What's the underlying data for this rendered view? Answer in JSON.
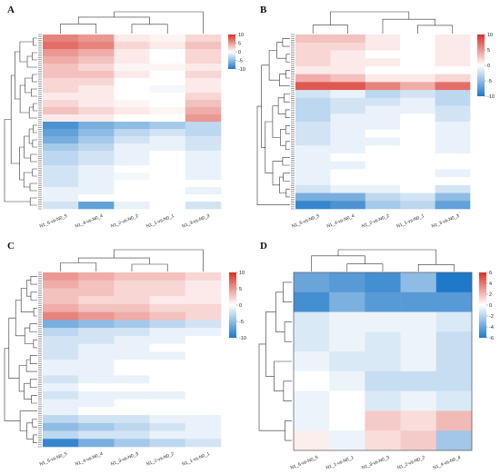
{
  "colors": {
    "low": "#1f78c8",
    "mid": "#ffffff",
    "high": "#d73027"
  },
  "chart_data": [
    {
      "type": "heatmap",
      "panel": "A",
      "columns": [
        "N1_5-vs-N0_5",
        "N1_4-vs-N0_4",
        "N1_2-vs-N0_2",
        "N1_1-vs-N0_1",
        "N1_3-vs-N0_3"
      ],
      "colorbar": {
        "ticks": [
          10,
          5,
          0,
          -5,
          -10
        ],
        "range": [
          -10,
          10
        ]
      },
      "rows": [
        [
          6,
          5,
          1,
          0.5,
          2
        ],
        [
          7,
          6,
          2,
          1,
          3
        ],
        [
          5,
          4,
          1,
          0,
          2
        ],
        [
          4,
          3,
          1,
          0,
          2
        ],
        [
          3,
          2,
          0.5,
          0.5,
          1
        ],
        [
          3,
          3,
          1,
          0,
          2
        ],
        [
          2,
          2,
          0,
          0,
          1
        ],
        [
          2,
          1,
          0,
          -0.5,
          1
        ],
        [
          1,
          1,
          0,
          0,
          2
        ],
        [
          2,
          1,
          0.5,
          0,
          3
        ],
        [
          3,
          2,
          1,
          0.5,
          4
        ],
        [
          1,
          1,
          0,
          0,
          5
        ],
        [
          -8,
          -6,
          -5,
          -4,
          -3
        ],
        [
          -7,
          -5,
          -3,
          -2,
          -3
        ],
        [
          -6,
          -4,
          -2,
          -1,
          -2
        ],
        [
          -4,
          -3,
          -1,
          -1,
          -2
        ],
        [
          -3,
          -2,
          -1,
          0,
          -1
        ],
        [
          -3,
          -2,
          -1,
          0,
          -1
        ],
        [
          -2,
          -1,
          0,
          0,
          -1
        ],
        [
          -2,
          -1,
          -0.5,
          0,
          -1
        ],
        [
          -2,
          -1,
          0,
          0,
          0
        ],
        [
          -1,
          -1,
          0,
          0,
          -1
        ],
        [
          -1,
          0,
          0,
          0,
          0
        ],
        [
          -2,
          -7,
          -1,
          0,
          -2
        ]
      ]
    },
    {
      "type": "heatmap",
      "panel": "B",
      "columns": [
        "N1_5-vs-N0_5",
        "N1_4-vs-N0_4",
        "N1_2-vs-N0_2",
        "N1_1-vs-N0_1",
        "N1_3-vs-N0_3"
      ],
      "colorbar": {
        "ticks": [
          10,
          5,
          0,
          -5,
          -10
        ],
        "range": [
          -10,
          10
        ]
      },
      "rows": [
        [
          3,
          3,
          1,
          0,
          1
        ],
        [
          2,
          2,
          1,
          0,
          1
        ],
        [
          2,
          1,
          0,
          0,
          1
        ],
        [
          2,
          1,
          1,
          0,
          1
        ],
        [
          1,
          1,
          0,
          0,
          0
        ],
        [
          4,
          3,
          1,
          1,
          2
        ],
        [
          8,
          8,
          6,
          4,
          7
        ],
        [
          -2,
          -1,
          -3,
          -2,
          -3
        ],
        [
          -3,
          -2,
          -2,
          -1,
          -3
        ],
        [
          -3,
          -2,
          -1,
          -1,
          -2
        ],
        [
          -3,
          -1,
          -1,
          0,
          -2
        ],
        [
          -2,
          -1,
          -1,
          0,
          -1
        ],
        [
          -2,
          -1,
          0,
          0,
          -1
        ],
        [
          -2,
          -1,
          -1,
          0,
          -1
        ],
        [
          -1,
          -1,
          0,
          0,
          -1
        ],
        [
          -1,
          0,
          0,
          0,
          0
        ],
        [
          -1,
          -1,
          0,
          0,
          0
        ],
        [
          -1,
          0,
          0,
          0,
          -1
        ],
        [
          -1,
          0,
          0,
          0,
          0
        ],
        [
          -2,
          -1,
          -1,
          0,
          -2
        ],
        [
          -6,
          -6,
          -3,
          -2,
          -5
        ],
        [
          -9,
          -8,
          -4,
          -3,
          -7
        ]
      ]
    },
    {
      "type": "heatmap",
      "panel": "C",
      "columns": [
        "N1_5-vs-N0_5",
        "N1_4-vs-N0_4",
        "N1_3-vs-N0_3",
        "N1_2-vs-N0_2",
        "N1_1-vs-N0_1"
      ],
      "colorbar": {
        "ticks": [
          10,
          5,
          0,
          -5,
          -10
        ],
        "range": [
          -10,
          10
        ]
      },
      "rows": [
        [
          5,
          4,
          3,
          3,
          2
        ],
        [
          4,
          3,
          2,
          2,
          1
        ],
        [
          3,
          3,
          2,
          2,
          1
        ],
        [
          3,
          2,
          2,
          1,
          1
        ],
        [
          4,
          3,
          3,
          2,
          2
        ],
        [
          6,
          5,
          4,
          3,
          2
        ],
        [
          -6,
          -5,
          -4,
          -3,
          -2
        ],
        [
          -3,
          -2,
          -2,
          -1,
          -1
        ],
        [
          -2,
          -2,
          -1,
          -1,
          0
        ],
        [
          -2,
          -1,
          -1,
          0,
          0
        ],
        [
          -2,
          -1,
          -1,
          -1,
          0
        ],
        [
          -1,
          -1,
          0,
          0,
          0
        ],
        [
          -1,
          -1,
          0,
          0,
          0
        ],
        [
          -2,
          -1,
          -1,
          0,
          0
        ],
        [
          -1,
          0,
          0,
          0,
          0
        ],
        [
          -2,
          -1,
          -1,
          -1,
          0
        ],
        [
          -1,
          -1,
          0,
          0,
          0
        ],
        [
          -1,
          0,
          0,
          0,
          0
        ],
        [
          -3,
          -2,
          -2,
          -1,
          -1
        ],
        [
          -5,
          -4,
          -3,
          -2,
          -1
        ],
        [
          -3,
          -2,
          -2,
          -1,
          -1
        ],
        [
          -9,
          -6,
          -4,
          -3,
          -2
        ]
      ]
    },
    {
      "type": "heatmap",
      "panel": "D",
      "columns": [
        "N1_5-vs-N0_5",
        "N1_1-vs-N0_1",
        "N1_3-vs-N0_3",
        "N1_2-vs-N0_2",
        "N1_4-vs-N0_4"
      ],
      "colorbar": {
        "ticks": [
          6,
          4,
          2,
          0,
          -2,
          -4,
          -6
        ],
        "range": [
          -6,
          6
        ]
      },
      "rows": [
        [
          -4,
          -4.5,
          -5,
          -3,
          -6
        ],
        [
          -5,
          -3.5,
          -4.5,
          -4.5,
          -4.5
        ],
        [
          -1,
          -0.5,
          -0.5,
          -0.5,
          -1
        ],
        [
          -1,
          -0.5,
          -1,
          -0.5,
          -1.5
        ],
        [
          -0.5,
          -1,
          -1,
          -0.5,
          -1.5
        ],
        [
          0,
          -0.5,
          -1.5,
          -1.5,
          -1.5
        ],
        [
          -0.5,
          0,
          -1,
          -0.5,
          -1
        ],
        [
          -0.5,
          0,
          1.5,
          1,
          2
        ],
        [
          0.5,
          -0.5,
          1,
          1.5,
          -2.5
        ]
      ]
    }
  ]
}
